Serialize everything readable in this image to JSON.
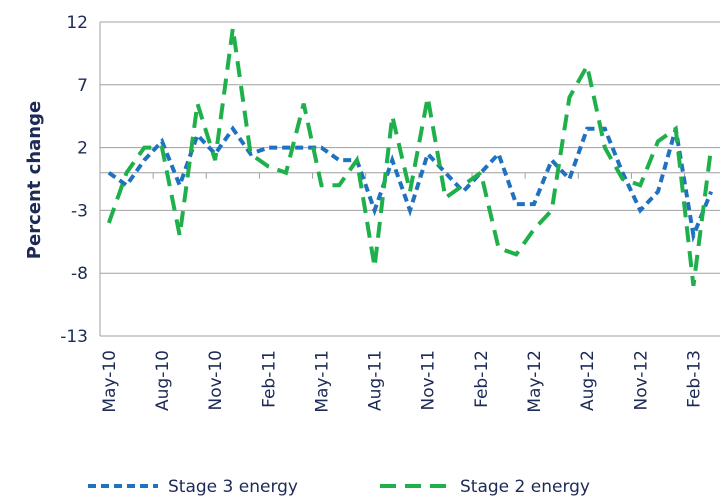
{
  "chart_data": {
    "type": "line",
    "y_label": "Percent change",
    "categories": [
      "May-10",
      null,
      null,
      "Aug-10",
      null,
      null,
      "Nov-10",
      null,
      null,
      "Feb-11",
      null,
      null,
      "May-11",
      null,
      null,
      "Aug-11",
      null,
      null,
      "Nov-11",
      null,
      null,
      "Feb-12",
      null,
      null,
      "May-12",
      null,
      null,
      "Aug-12",
      null,
      null,
      "Nov-12",
      null,
      null,
      "Feb-13",
      null
    ],
    "series": [
      {
        "name": "Stage 3 energy",
        "color": "#1f72c0",
        "dash": "short",
        "values": [
          0,
          -1,
          1,
          2.5,
          -1,
          3,
          1.5,
          3.5,
          1.5,
          2,
          2,
          2,
          2,
          1,
          1,
          -3,
          1,
          -3,
          1.5,
          0,
          -1.5,
          0,
          1.5,
          -2.5,
          -2.5,
          1,
          -0.5,
          3.5,
          3.5,
          0,
          -3,
          -1.5,
          3.5,
          -5,
          -1.5
        ]
      },
      {
        "name": "Stage 2 energy",
        "color": "#1fb04c",
        "dash": "long",
        "values": [
          -4,
          0,
          2,
          2,
          -5,
          5.5,
          1,
          11.5,
          1.5,
          0.5,
          0,
          5.5,
          -1,
          -1,
          1,
          -7.5,
          4.5,
          -1.5,
          6,
          -2,
          -1,
          0,
          -6,
          -6.5,
          -4.5,
          -3,
          6,
          8.5,
          2,
          -0.5,
          -1,
          2.5,
          3.5,
          -9,
          2
        ]
      }
    ],
    "ylim": [
      -13,
      12
    ],
    "yticks": [
      -13,
      -8,
      -3,
      2,
      7,
      12
    ],
    "grid": true,
    "legend": "bottom"
  }
}
